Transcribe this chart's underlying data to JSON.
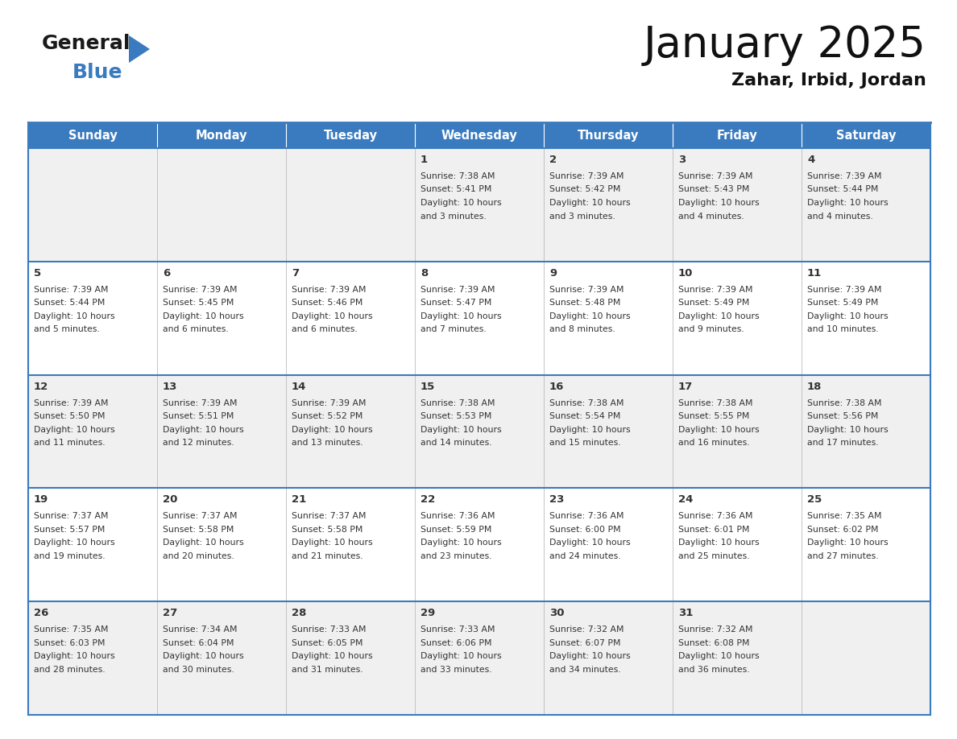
{
  "title": "January 2025",
  "subtitle": "Zahar, Irbid, Jordan",
  "days_of_week": [
    "Sunday",
    "Monday",
    "Tuesday",
    "Wednesday",
    "Thursday",
    "Friday",
    "Saturday"
  ],
  "header_bg": "#3a7bbf",
  "header_text": "#ffffff",
  "row_bg_odd": "#f0f0f0",
  "row_bg_even": "#ffffff",
  "cell_text_color": "#333333",
  "day_num_color": "#333333",
  "border_color": "#3a7bbf",
  "calendar_data": [
    [
      {
        "day": null,
        "sunrise": null,
        "sunset": null,
        "daylight": null
      },
      {
        "day": null,
        "sunrise": null,
        "sunset": null,
        "daylight": null
      },
      {
        "day": null,
        "sunrise": null,
        "sunset": null,
        "daylight": null
      },
      {
        "day": 1,
        "sunrise": "7:38 AM",
        "sunset": "5:41 PM",
        "daylight": "10 hours and 3 minutes."
      },
      {
        "day": 2,
        "sunrise": "7:39 AM",
        "sunset": "5:42 PM",
        "daylight": "10 hours and 3 minutes."
      },
      {
        "day": 3,
        "sunrise": "7:39 AM",
        "sunset": "5:43 PM",
        "daylight": "10 hours and 4 minutes."
      },
      {
        "day": 4,
        "sunrise": "7:39 AM",
        "sunset": "5:44 PM",
        "daylight": "10 hours and 4 minutes."
      }
    ],
    [
      {
        "day": 5,
        "sunrise": "7:39 AM",
        "sunset": "5:44 PM",
        "daylight": "10 hours and 5 minutes."
      },
      {
        "day": 6,
        "sunrise": "7:39 AM",
        "sunset": "5:45 PM",
        "daylight": "10 hours and 6 minutes."
      },
      {
        "day": 7,
        "sunrise": "7:39 AM",
        "sunset": "5:46 PM",
        "daylight": "10 hours and 6 minutes."
      },
      {
        "day": 8,
        "sunrise": "7:39 AM",
        "sunset": "5:47 PM",
        "daylight": "10 hours and 7 minutes."
      },
      {
        "day": 9,
        "sunrise": "7:39 AM",
        "sunset": "5:48 PM",
        "daylight": "10 hours and 8 minutes."
      },
      {
        "day": 10,
        "sunrise": "7:39 AM",
        "sunset": "5:49 PM",
        "daylight": "10 hours and 9 minutes."
      },
      {
        "day": 11,
        "sunrise": "7:39 AM",
        "sunset": "5:49 PM",
        "daylight": "10 hours and 10 minutes."
      }
    ],
    [
      {
        "day": 12,
        "sunrise": "7:39 AM",
        "sunset": "5:50 PM",
        "daylight": "10 hours and 11 minutes."
      },
      {
        "day": 13,
        "sunrise": "7:39 AM",
        "sunset": "5:51 PM",
        "daylight": "10 hours and 12 minutes."
      },
      {
        "day": 14,
        "sunrise": "7:39 AM",
        "sunset": "5:52 PM",
        "daylight": "10 hours and 13 minutes."
      },
      {
        "day": 15,
        "sunrise": "7:38 AM",
        "sunset": "5:53 PM",
        "daylight": "10 hours and 14 minutes."
      },
      {
        "day": 16,
        "sunrise": "7:38 AM",
        "sunset": "5:54 PM",
        "daylight": "10 hours and 15 minutes."
      },
      {
        "day": 17,
        "sunrise": "7:38 AM",
        "sunset": "5:55 PM",
        "daylight": "10 hours and 16 minutes."
      },
      {
        "day": 18,
        "sunrise": "7:38 AM",
        "sunset": "5:56 PM",
        "daylight": "10 hours and 17 minutes."
      }
    ],
    [
      {
        "day": 19,
        "sunrise": "7:37 AM",
        "sunset": "5:57 PM",
        "daylight": "10 hours and 19 minutes."
      },
      {
        "day": 20,
        "sunrise": "7:37 AM",
        "sunset": "5:58 PM",
        "daylight": "10 hours and 20 minutes."
      },
      {
        "day": 21,
        "sunrise": "7:37 AM",
        "sunset": "5:58 PM",
        "daylight": "10 hours and 21 minutes."
      },
      {
        "day": 22,
        "sunrise": "7:36 AM",
        "sunset": "5:59 PM",
        "daylight": "10 hours and 23 minutes."
      },
      {
        "day": 23,
        "sunrise": "7:36 AM",
        "sunset": "6:00 PM",
        "daylight": "10 hours and 24 minutes."
      },
      {
        "day": 24,
        "sunrise": "7:36 AM",
        "sunset": "6:01 PM",
        "daylight": "10 hours and 25 minutes."
      },
      {
        "day": 25,
        "sunrise": "7:35 AM",
        "sunset": "6:02 PM",
        "daylight": "10 hours and 27 minutes."
      }
    ],
    [
      {
        "day": 26,
        "sunrise": "7:35 AM",
        "sunset": "6:03 PM",
        "daylight": "10 hours and 28 minutes."
      },
      {
        "day": 27,
        "sunrise": "7:34 AM",
        "sunset": "6:04 PM",
        "daylight": "10 hours and 30 minutes."
      },
      {
        "day": 28,
        "sunrise": "7:33 AM",
        "sunset": "6:05 PM",
        "daylight": "10 hours and 31 minutes."
      },
      {
        "day": 29,
        "sunrise": "7:33 AM",
        "sunset": "6:06 PM",
        "daylight": "10 hours and 33 minutes."
      },
      {
        "day": 30,
        "sunrise": "7:32 AM",
        "sunset": "6:07 PM",
        "daylight": "10 hours and 34 minutes."
      },
      {
        "day": 31,
        "sunrise": "7:32 AM",
        "sunset": "6:08 PM",
        "daylight": "10 hours and 36 minutes."
      },
      {
        "day": null,
        "sunrise": null,
        "sunset": null,
        "daylight": null
      }
    ]
  ],
  "logo_general_color": "#1a1a1a",
  "logo_blue_color": "#3a7bbf",
  "logo_triangle_color": "#3a7bbf"
}
